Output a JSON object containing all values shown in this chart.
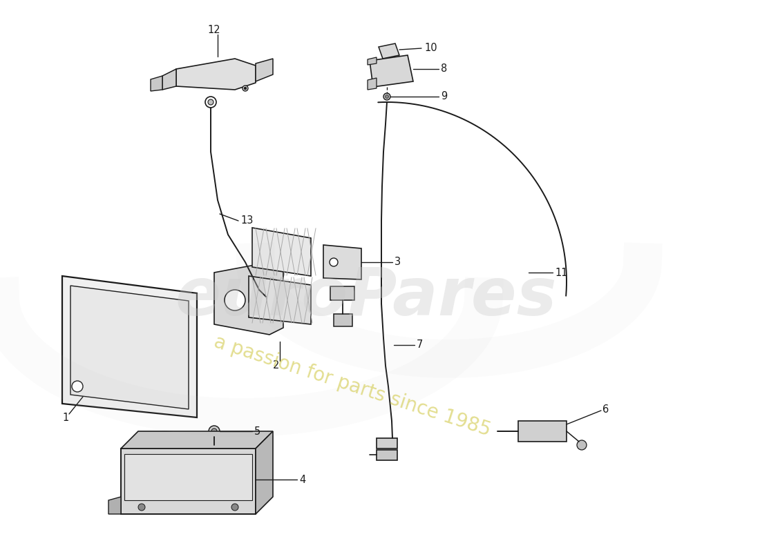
{
  "bg_color": "#ffffff",
  "lc": "#1a1a1a",
  "wm1": "euroPares",
  "wm2": "a passion for parts since 1985",
  "wm1_color": "#c8c8c8",
  "wm2_color": "#d4cc55",
  "fs": 10.5
}
